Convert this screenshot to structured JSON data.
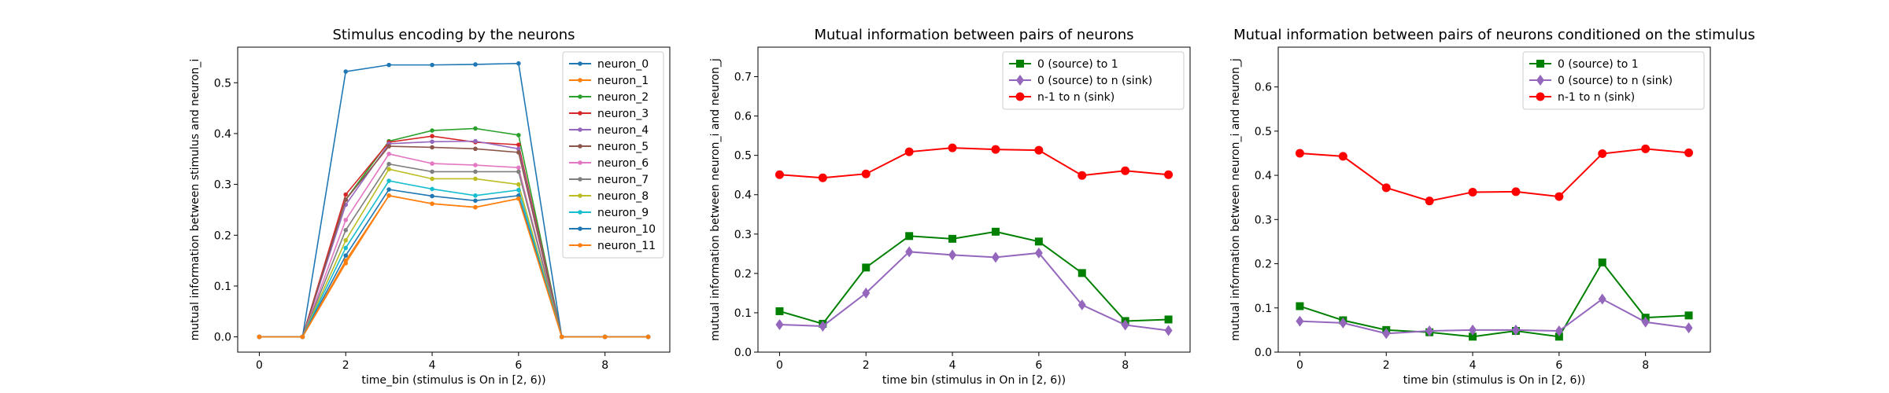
{
  "chart_data": [
    {
      "type": "line",
      "title": "Stimulus encoding by the neurons",
      "xlabel": "time_bin (stimulus is On in [2, 6))",
      "ylabel": "mutual information between stimulus and neuron_i",
      "xlim": [
        -0.5,
        9.5
      ],
      "ylim": [
        -0.03,
        0.57
      ],
      "xticks": [
        0,
        2,
        4,
        6,
        8
      ],
      "yticks": [
        0.0,
        0.1,
        0.2,
        0.3,
        0.4,
        0.5
      ],
      "ytick_decimals": 1,
      "legend": "top-right",
      "x": [
        0,
        1,
        2,
        3,
        4,
        5,
        6,
        7,
        8,
        9
      ],
      "series": [
        {
          "name": "neuron_0",
          "color": "#1f77b4",
          "marker": "dot",
          "values": [
            0,
            0,
            0.522,
            0.535,
            0.535,
            0.536,
            0.538,
            0,
            0,
            0
          ]
        },
        {
          "name": "neuron_1",
          "color": "#ff7f0e",
          "marker": "dot",
          "values": [
            0,
            0,
            0.145,
            0.278,
            0.262,
            0.255,
            0.272,
            0,
            0,
            0
          ]
        },
        {
          "name": "neuron_2",
          "color": "#2ca02c",
          "marker": "dot",
          "values": [
            0,
            0,
            0.27,
            0.385,
            0.406,
            0.41,
            0.397,
            0,
            0,
            0
          ]
        },
        {
          "name": "neuron_3",
          "color": "#d62728",
          "marker": "dot",
          "values": [
            0,
            0,
            0.28,
            0.383,
            0.395,
            0.383,
            0.378,
            0,
            0,
            0
          ]
        },
        {
          "name": "neuron_4",
          "color": "#9467bd",
          "marker": "dot",
          "values": [
            0,
            0,
            0.26,
            0.38,
            0.384,
            0.385,
            0.37,
            0,
            0,
            0
          ]
        },
        {
          "name": "neuron_5",
          "color": "#8c564b",
          "marker": "dot",
          "values": [
            0,
            0,
            0.27,
            0.375,
            0.373,
            0.37,
            0.363,
            0,
            0,
            0
          ]
        },
        {
          "name": "neuron_6",
          "color": "#e377c2",
          "marker": "dot",
          "values": [
            0,
            0,
            0.23,
            0.36,
            0.341,
            0.338,
            0.333,
            0,
            0,
            0
          ]
        },
        {
          "name": "neuron_7",
          "color": "#7f7f7f",
          "marker": "dot",
          "values": [
            0,
            0,
            0.21,
            0.34,
            0.325,
            0.325,
            0.325,
            0,
            0,
            0
          ]
        },
        {
          "name": "neuron_8",
          "color": "#bcbd22",
          "marker": "dot",
          "values": [
            0,
            0,
            0.19,
            0.33,
            0.311,
            0.311,
            0.3,
            0,
            0,
            0
          ]
        },
        {
          "name": "neuron_9",
          "color": "#17becf",
          "marker": "dot",
          "values": [
            0,
            0,
            0.175,
            0.307,
            0.291,
            0.278,
            0.289,
            0,
            0,
            0
          ]
        },
        {
          "name": "neuron_10",
          "color": "#1f77b4",
          "marker": "dot",
          "values": [
            0,
            0,
            0.16,
            0.29,
            0.277,
            0.268,
            0.278,
            0,
            0,
            0
          ]
        },
        {
          "name": "neuron_11",
          "color": "#ff7f0e",
          "marker": "dot",
          "values": [
            0,
            0,
            0.15,
            0.278,
            0.262,
            0.255,
            0.272,
            0,
            0,
            0
          ]
        }
      ]
    },
    {
      "type": "line",
      "title": "Mutual information between pairs of neurons",
      "xlabel": "time bin (stimulus in On in [2, 6))",
      "ylabel": "mutual information between neuron_i and neuron_j",
      "xlim": [
        -0.5,
        9.5
      ],
      "ylim": [
        0,
        0.775
      ],
      "xticks": [
        0,
        2,
        4,
        6,
        8
      ],
      "yticks": [
        0.0,
        0.1,
        0.2,
        0.3,
        0.4,
        0.5,
        0.6,
        0.7
      ],
      "ytick_decimals": 1,
      "legend": "top-right",
      "x": [
        0,
        1,
        2,
        3,
        4,
        5,
        6,
        7,
        8,
        9
      ],
      "series": [
        {
          "name": "0 (source) to 1",
          "color": "#008000",
          "marker": "square",
          "values": [
            0.104,
            0.072,
            0.215,
            0.295,
            0.288,
            0.306,
            0.281,
            0.201,
            0.079,
            0.083
          ]
        },
        {
          "name": "0 (source) to n (sink)",
          "color": "#9467bd",
          "marker": "diamond",
          "values": [
            0.07,
            0.066,
            0.15,
            0.255,
            0.247,
            0.241,
            0.252,
            0.12,
            0.069,
            0.055
          ]
        },
        {
          "name": "n-1 to n (sink)",
          "color": "#ff0000",
          "marker": "circle",
          "values": [
            0.451,
            0.443,
            0.453,
            0.509,
            0.519,
            0.515,
            0.513,
            0.449,
            0.461,
            0.451
          ]
        }
      ]
    },
    {
      "type": "line",
      "title": "Mutual information between pairs of neurons conditioned on the stimulus",
      "xlabel": "time bin (stimulus is On in [2, 6))",
      "ylabel": "mutual information between neuron_i and neuron_j",
      "xlim": [
        -0.5,
        9.5
      ],
      "ylim": [
        0,
        0.69
      ],
      "xticks": [
        0,
        2,
        4,
        6,
        8
      ],
      "yticks": [
        0.0,
        0.1,
        0.2,
        0.3,
        0.4,
        0.5,
        0.6
      ],
      "ytick_decimals": 1,
      "legend": "top-right",
      "x": [
        0,
        1,
        2,
        3,
        4,
        5,
        6,
        7,
        8,
        9
      ],
      "series": [
        {
          "name": "0 (source) to 1",
          "color": "#008000",
          "marker": "square",
          "values": [
            0.104,
            0.072,
            0.05,
            0.045,
            0.035,
            0.048,
            0.035,
            0.203,
            0.078,
            0.083
          ]
        },
        {
          "name": "0 (source) to n (sink)",
          "color": "#9467bd",
          "marker": "diamond",
          "values": [
            0.07,
            0.066,
            0.042,
            0.048,
            0.05,
            0.05,
            0.048,
            0.12,
            0.068,
            0.055
          ]
        },
        {
          "name": "n-1 to n (sink)",
          "color": "#ff0000",
          "marker": "circle",
          "values": [
            0.45,
            0.443,
            0.372,
            0.342,
            0.362,
            0.363,
            0.352,
            0.449,
            0.46,
            0.451
          ]
        }
      ]
    }
  ]
}
